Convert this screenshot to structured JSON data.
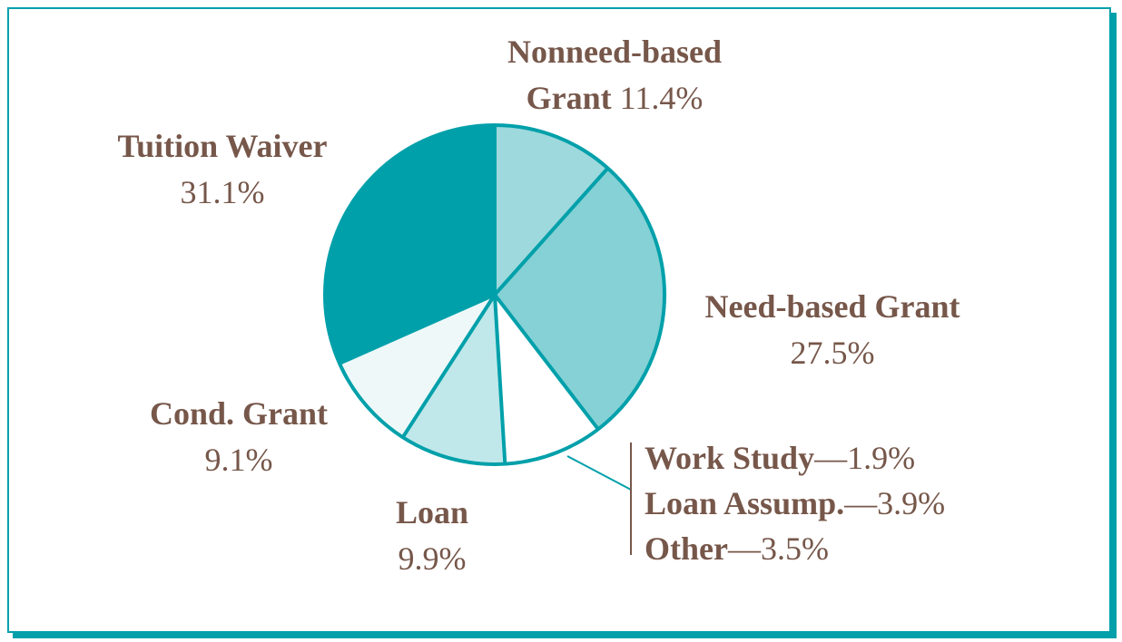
{
  "chart_data": {
    "type": "pie",
    "categories": [
      "Nonneed-based Grant",
      "Need-based Grant",
      "Work Study",
      "Loan Assump.",
      "Other",
      "Loan",
      "Cond. Grant",
      "Tuition Waiver"
    ],
    "values": [
      11.4,
      27.5,
      1.9,
      3.9,
      3.5,
      9.9,
      9.1,
      31.1
    ],
    "value_labels": [
      "11.4%",
      "27.5%",
      "1.9%",
      "3.9%",
      "3.5%",
      "9.9%",
      "9.1%",
      "31.1%"
    ],
    "colors": [
      "#9ed9dd",
      "#85d1d5",
      "#ffffff",
      "#ffffff",
      "#ffffff",
      "#c0e8ea",
      "#eef8f9",
      "#00a0aa"
    ]
  }
}
